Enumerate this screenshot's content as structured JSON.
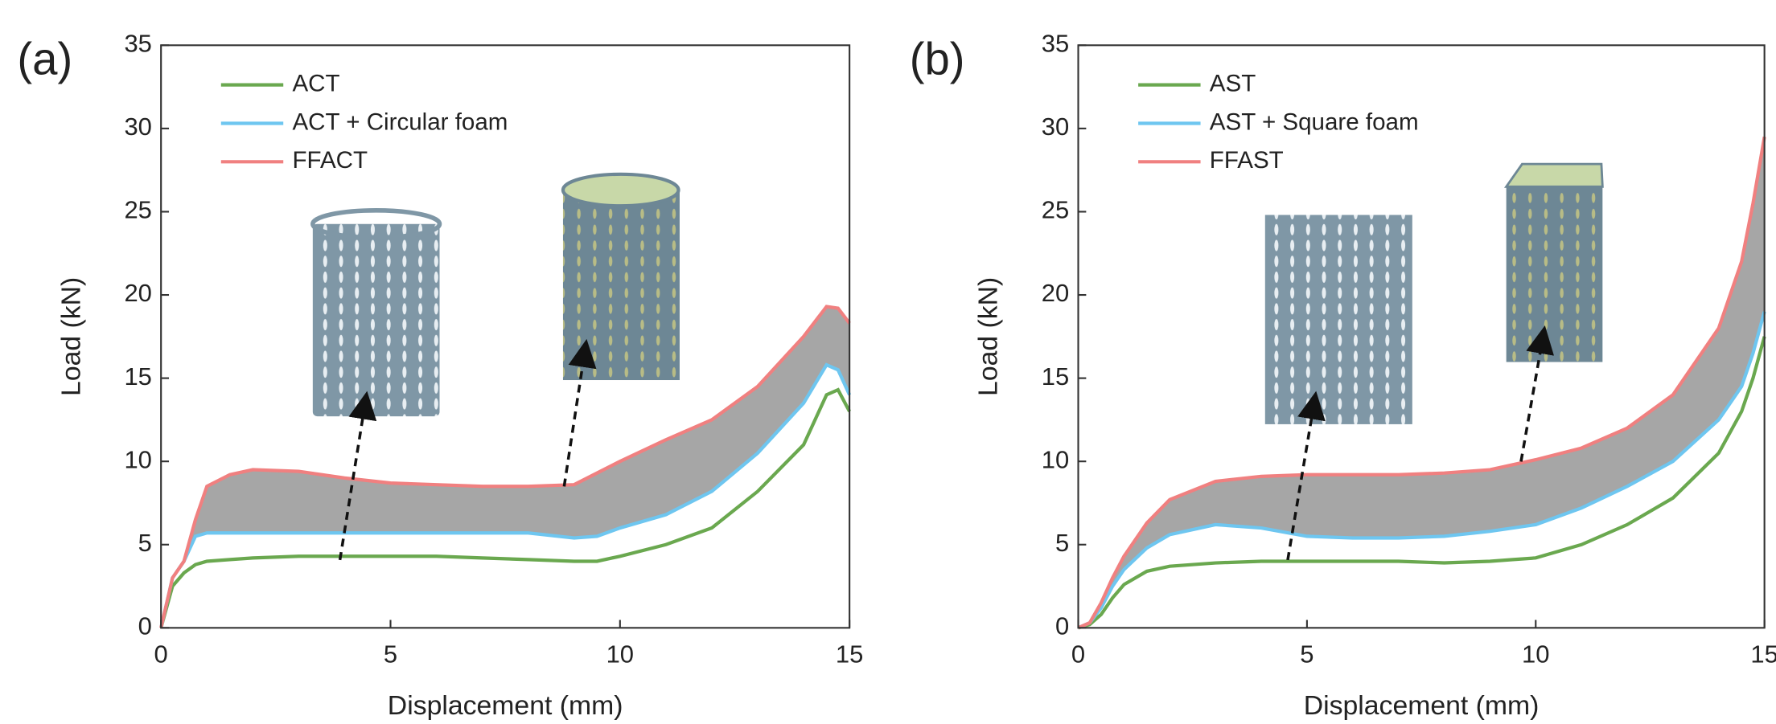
{
  "chart_data": [
    {
      "type": "line",
      "panel_label": "(a)",
      "xlabel": "Displacement (mm)",
      "ylabel": "Load (kN)",
      "xlim": [
        0,
        15
      ],
      "ylim": [
        0,
        35
      ],
      "xticks": [
        0,
        5,
        10,
        15
      ],
      "yticks": [
        0,
        5,
        10,
        15,
        20,
        25,
        30,
        35
      ],
      "x": [
        0,
        0.25,
        0.5,
        0.75,
        1,
        1.5,
        2,
        3,
        4,
        5,
        6,
        7,
        8,
        9,
        9.5,
        10,
        11,
        12,
        13,
        14,
        14.5,
        14.75,
        15
      ],
      "series": [
        {
          "name": "ACT",
          "color": "#6aa84f",
          "values": [
            0,
            2.5,
            3.3,
            3.8,
            4.0,
            4.1,
            4.2,
            4.3,
            4.3,
            4.3,
            4.3,
            4.2,
            4.1,
            4.0,
            4.0,
            4.3,
            5.0,
            6.0,
            8.2,
            11,
            14,
            14.3,
            13
          ]
        },
        {
          "name": "ACT + Circular foam",
          "color": "#6ec6f0",
          "values": [
            0,
            3,
            4,
            5.5,
            5.7,
            5.7,
            5.7,
            5.7,
            5.7,
            5.7,
            5.7,
            5.7,
            5.7,
            5.4,
            5.5,
            6,
            6.8,
            8.2,
            10.5,
            13.5,
            15.8,
            15.5,
            14
          ]
        },
        {
          "name": "FFACT",
          "color": "#f08080",
          "values": [
            0,
            3,
            4,
            6.5,
            8.5,
            9.2,
            9.5,
            9.4,
            9.0,
            8.7,
            8.6,
            8.5,
            8.5,
            8.6,
            9.3,
            10,
            11.3,
            12.5,
            14.5,
            17.5,
            19.3,
            19.2,
            18.3
          ]
        }
      ]
    },
    {
      "type": "line",
      "panel_label": "(b)",
      "xlabel": "Displacement (mm)",
      "ylabel": "Load (kN)",
      "xlim": [
        0,
        15
      ],
      "ylim": [
        0,
        35
      ],
      "xticks": [
        0,
        5,
        10,
        15
      ],
      "yticks": [
        0,
        5,
        10,
        15,
        20,
        25,
        30,
        35
      ],
      "x": [
        0,
        0.25,
        0.5,
        0.75,
        1,
        1.5,
        2,
        3,
        4,
        5,
        6,
        7,
        8,
        9,
        9.5,
        10,
        11,
        12,
        13,
        14,
        14.5,
        14.75,
        15
      ],
      "series": [
        {
          "name": "AST",
          "color": "#6aa84f",
          "values": [
            0,
            0.2,
            0.8,
            1.8,
            2.6,
            3.4,
            3.7,
            3.9,
            4.0,
            4.0,
            4.0,
            4.0,
            3.9,
            4.0,
            4.1,
            4.2,
            5.0,
            6.2,
            7.8,
            10.5,
            13,
            15,
            17.5
          ]
        },
        {
          "name": "AST + Square foam",
          "color": "#6ec6f0",
          "values": [
            0,
            0.3,
            1.2,
            2.5,
            3.5,
            4.8,
            5.6,
            6.2,
            6.0,
            5.5,
            5.4,
            5.4,
            5.5,
            5.8,
            6.0,
            6.2,
            7.2,
            8.5,
            10.0,
            12.5,
            14.5,
            16.5,
            19
          ]
        },
        {
          "name": "FFAST",
          "color": "#f08080",
          "values": [
            0,
            0.3,
            1.5,
            3,
            4.3,
            6.3,
            7.7,
            8.8,
            9.1,
            9.2,
            9.2,
            9.2,
            9.3,
            9.5,
            9.8,
            10.1,
            10.8,
            12.0,
            14,
            18,
            22,
            25.5,
            29.5
          ]
        }
      ]
    }
  ]
}
